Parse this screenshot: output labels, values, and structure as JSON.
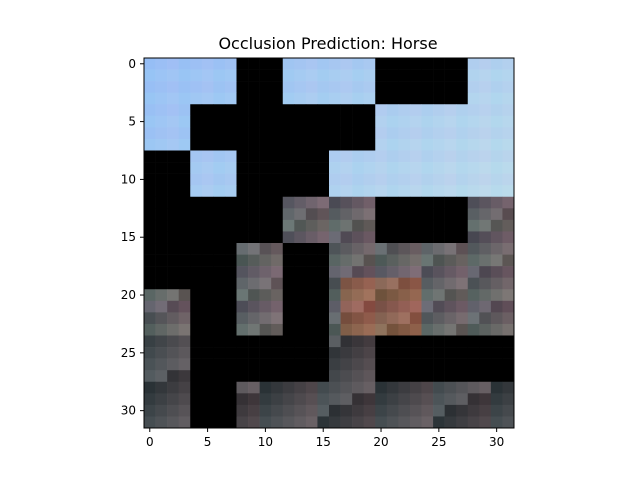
{
  "figure": {
    "title": "Occlusion Prediction: Horse"
  },
  "axes": {
    "x_ticks": [
      "0",
      "5",
      "10",
      "15",
      "20",
      "25",
      "30"
    ],
    "y_ticks": [
      "0",
      "5",
      "10",
      "15",
      "20",
      "25",
      "30"
    ],
    "x_tick_values": [
      0,
      5,
      10,
      15,
      20,
      25,
      30
    ],
    "y_tick_values": [
      0,
      5,
      10,
      15,
      20,
      25,
      30
    ],
    "x_range": [
      -0.5,
      31.5
    ],
    "y_range": [
      -0.5,
      31.5
    ],
    "grid": false
  },
  "image": {
    "grid_size": 32,
    "occlusion_color": "#000000",
    "sky_color": "#9cc6f2",
    "rows": [
      "AAAAAAAAAAAAAAAAAAAAAAAAAAAAAAAA",
      "AAAAAAAAAAAAAAAAAAAAAAAAAAAAAAAA",
      "AAAAAAAAAAAAAAAAAAAAAAAAAAAAAAAA",
      "AAAAAAAAAAAAAAAAAAAAAAAAAAAAAAAA",
      "AAAAAAAAAAAAAAAAAAAAAAAAAAAAAAAA",
      "AAAAAAAAAAAAAAAAAAAAAAAAAAAAAAAA",
      "AAAAAAAAAAAAAAAAAAAAAAAAAAAAAAAA",
      "AAAAAAAAAAAAAAAAAAAAAAAAAAAAAAAA",
      "AAAAAAAAAAAAAAAAAAAAAAAAAAAAAAAA",
      "AAAAAAAAAAAAAAAAAAAAAAAAAAAAAAAA",
      "AAAAAAAAAAAAAAAAAAAAAAAAAAAAAAAA",
      "AAAAAAAAAAAAAAAAAAAAAAAAAAAAAAAA",
      "AAAAAAAAAAAAAAAAAAAAAAAAAAAAAAAA",
      "AAAAAAAAAAAAAAAAAAAAAAAAAAAAAAAA",
      "AAAAAAAAAAAAAAAAAAAAAAAAAAAAAAAA",
      "AAAAAAAAAAAAAAAAAAAAAAAAAAAAAAAA",
      "AAAAAAAAAAAAAAAAAAAAAAAAAAAAAAAA",
      "AAAAAAAAAAAAAAAAAAAAAAAAAAAAAAAA",
      "AAAAAAAAAAAAAAAAAAAAAAAAAAAAAAAA",
      "AAAAAAAAAAAAAAAAAAAAAAAAAAAAAAAA",
      "AAAAAAAAAAAAAAAAAAAAAAAAAAAAAAAA",
      "AAAAAAAAAAAAAAAAAAAAAAAAAAAAAAAA",
      "AAAAAAAAAAAAAAAAAAAAAAAAAAAAAAAA",
      "AAAAAAAAAAAAAAAAAAAAAAAAAAAAAAAA",
      "AAAAAAAAAAAAAAAAAAAAAAAAAAAAAAAA",
      "AAAAAAAAAAAAAAAAAAAAAAAAAAAAAAAA",
      "AAAAAAAAAAAAAAAAAAAAAAAAAAAAAAAA",
      "AAAAAAAAAAAAAAAAAAAAAAAAAAAAAAAA",
      "AAAAAAAAAAAAAAAAAAAAAAAAAAAAAAAA",
      "AAAAAAAAAAAAAAAAAAAAAAAAAAAAAAAA",
      "AAAAAAAAAAAAAAAAAAAAAAAAAAAAAAAA",
      "AAAAAAAAAAAAAAAAAAAAAAAAAAAAAAAA"
    ],
    "occluded_blocks": [
      [
        0,
        8,
        4,
        4
      ],
      [
        4,
        4,
        4,
        4
      ],
      [
        4,
        8,
        4,
        4
      ],
      [
        4,
        12,
        4,
        4
      ],
      [
        4,
        16,
        4,
        4
      ],
      [
        0,
        20,
        4,
        4
      ],
      [
        0,
        24,
        4,
        4
      ],
      [
        8,
        0,
        4,
        4
      ],
      [
        8,
        8,
        4,
        4
      ],
      [
        8,
        12,
        4,
        4
      ],
      [
        12,
        0,
        4,
        4
      ],
      [
        12,
        4,
        4,
        4
      ],
      [
        12,
        8,
        4,
        4
      ],
      [
        12,
        20,
        4,
        4
      ],
      [
        12,
        24,
        4,
        4
      ],
      [
        16,
        0,
        4,
        4
      ],
      [
        16,
        4,
        4,
        4
      ],
      [
        16,
        12,
        4,
        4
      ],
      [
        20,
        4,
        4,
        4
      ],
      [
        20,
        12,
        4,
        4
      ],
      [
        24,
        4,
        4,
        4
      ],
      [
        24,
        8,
        4,
        4
      ],
      [
        24,
        12,
        4,
        4
      ],
      [
        24,
        20,
        4,
        4
      ],
      [
        24,
        24,
        4,
        4
      ],
      [
        24,
        28,
        4,
        4
      ],
      [
        28,
        4,
        4,
        4
      ]
    ]
  }
}
